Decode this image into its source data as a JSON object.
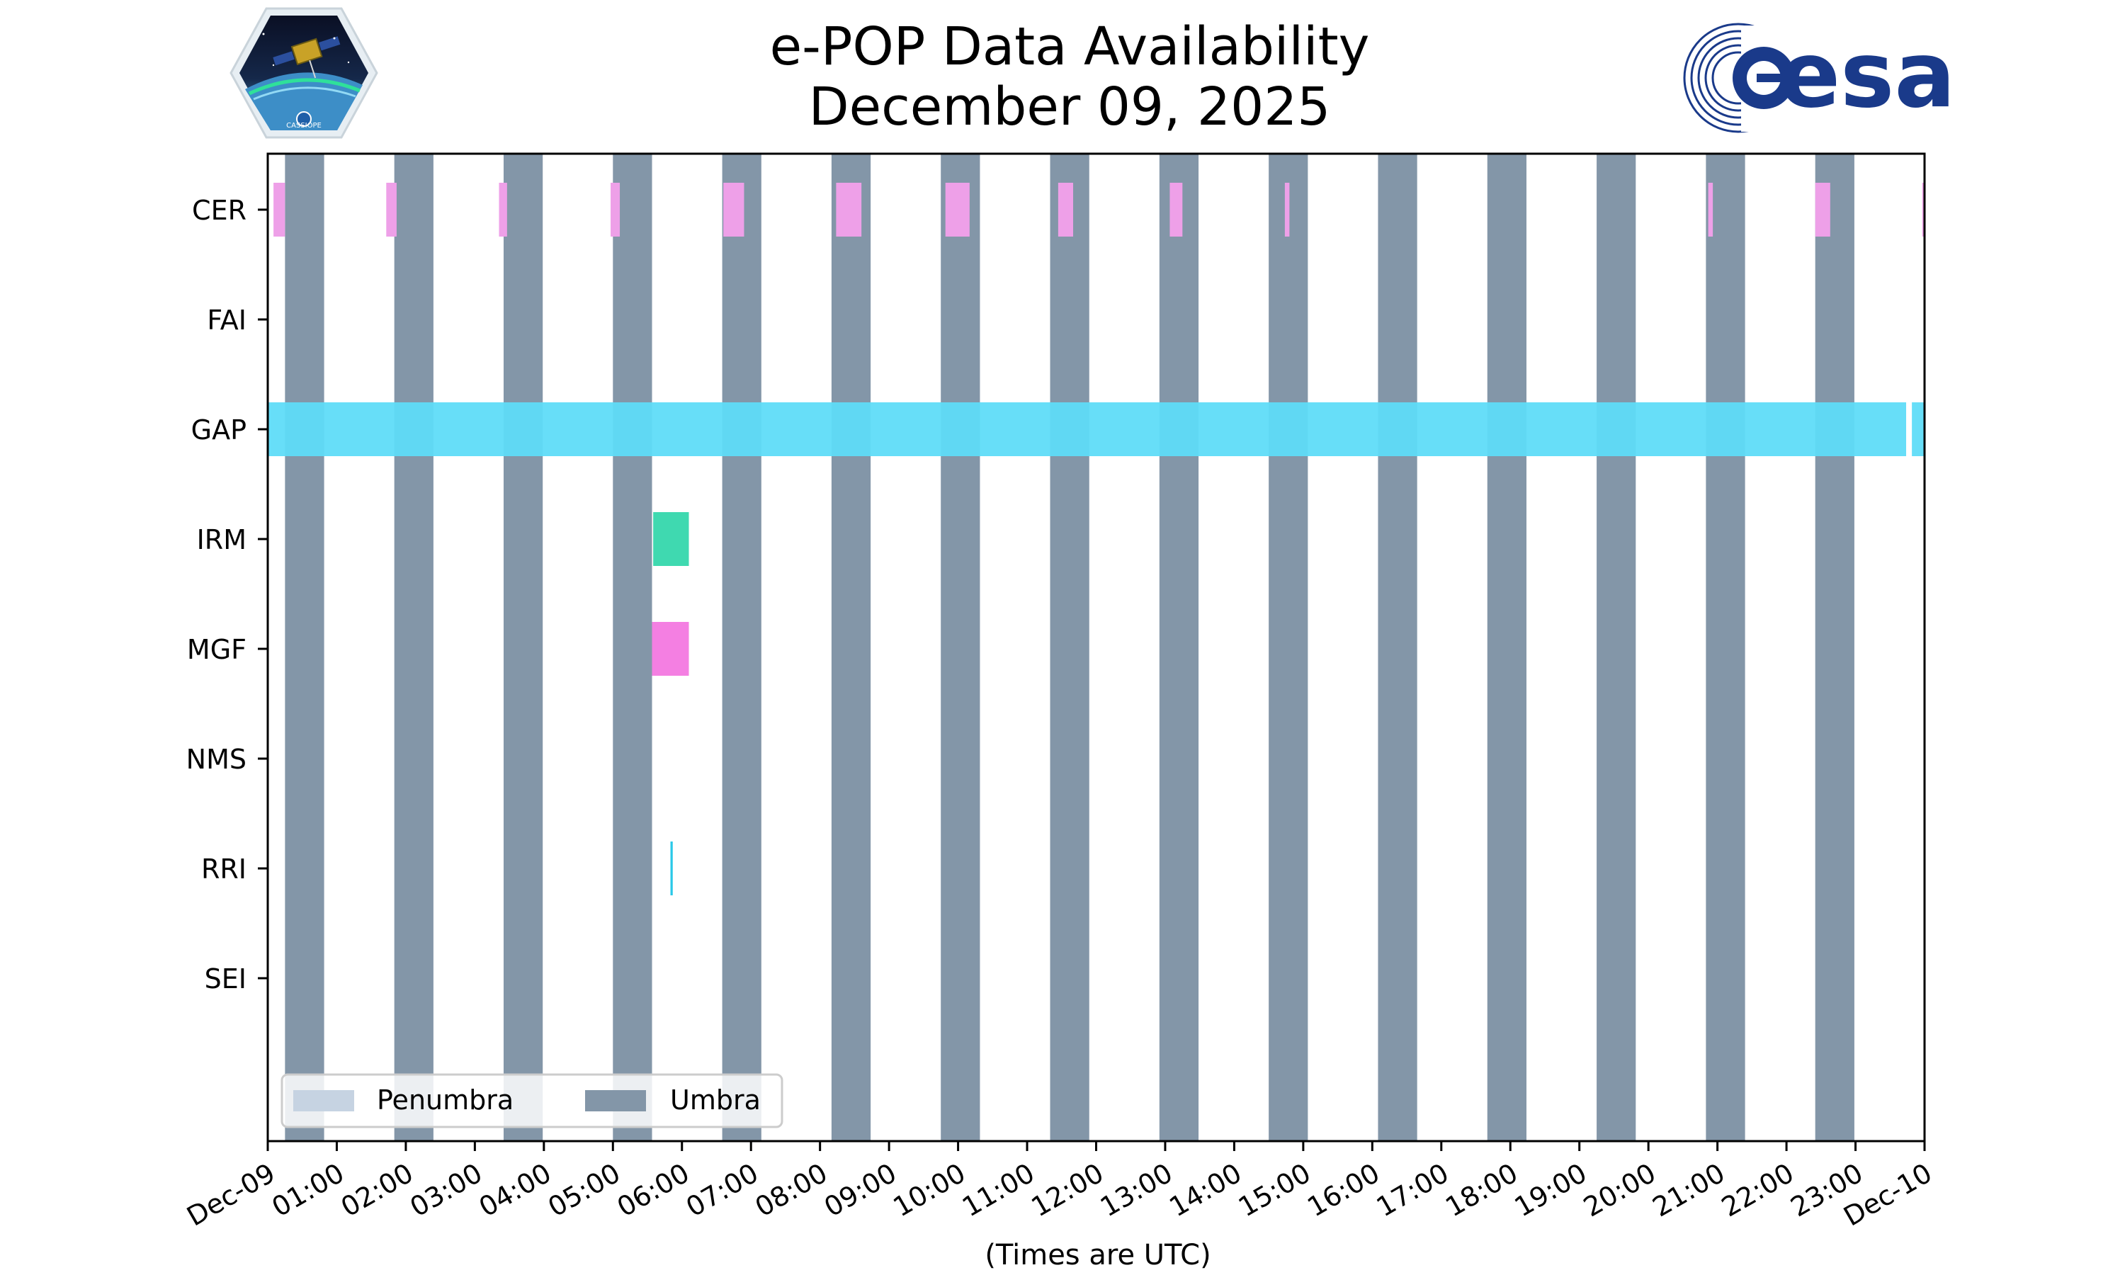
{
  "header": {
    "title_line1": "e-POP Data Availability",
    "title_line2": "December 09, 2025",
    "left_logo": {
      "name": "cassiope-mission-logo",
      "text": "CASSIOPE"
    },
    "right_logo": {
      "name": "esa-logo",
      "text": "esa"
    }
  },
  "chart_data": {
    "type": "timeline",
    "xlabel": "(Times are UTC)",
    "xlim": [
      "2025-12-09T00:00",
      "2025-12-10T00:00"
    ],
    "x_tick_labels": [
      "Dec-09",
      "01:00",
      "02:00",
      "03:00",
      "04:00",
      "05:00",
      "06:00",
      "07:00",
      "08:00",
      "09:00",
      "10:00",
      "11:00",
      "12:00",
      "13:00",
      "14:00",
      "15:00",
      "16:00",
      "17:00",
      "18:00",
      "19:00",
      "20:00",
      "21:00",
      "22:00",
      "23:00",
      "Dec-10"
    ],
    "instruments": [
      "CER",
      "FAI",
      "GAP",
      "IRM",
      "MGF",
      "NMS",
      "RRI",
      "SEI"
    ],
    "legend": {
      "placement": "lower-left",
      "entries": [
        "Penumbra",
        "Umbra"
      ]
    },
    "colors": {
      "umbra": "#8396a8",
      "penumbra": "#c6d3e2",
      "CER": "#eea0e8",
      "GAP": "#5edcf8",
      "IRM": "#3fd9b0",
      "MGF": "#f47fe2",
      "RRI": "#2ac8e8"
    },
    "umbra": [
      [
        "00:15",
        "00:49"
      ],
      [
        "01:50",
        "02:24"
      ],
      [
        "03:25",
        "03:59"
      ],
      [
        "05:00",
        "05:34"
      ],
      [
        "06:35",
        "07:09"
      ],
      [
        "08:10",
        "08:44"
      ],
      [
        "09:45",
        "10:19"
      ],
      [
        "11:20",
        "11:54"
      ],
      [
        "12:55",
        "13:29"
      ],
      [
        "14:30",
        "15:04"
      ],
      [
        "16:05",
        "16:39"
      ],
      [
        "17:40",
        "18:14"
      ],
      [
        "19:15",
        "19:49"
      ],
      [
        "20:50",
        "21:24"
      ],
      [
        "22:25",
        "22:59"
      ]
    ],
    "availability": {
      "CER": [
        [
          "00:05",
          "00:15"
        ],
        [
          "01:43",
          "01:52"
        ],
        [
          "03:21",
          "03:28"
        ],
        [
          "04:58",
          "05:06"
        ],
        [
          "06:36",
          "06:54"
        ],
        [
          "08:14",
          "08:36"
        ],
        [
          "09:49",
          "10:10"
        ],
        [
          "11:27",
          "11:40"
        ],
        [
          "13:04",
          "13:15"
        ],
        [
          "14:44",
          "14:48"
        ],
        [
          "20:52",
          "20:56"
        ],
        [
          "22:25",
          "22:38"
        ],
        [
          "23:58",
          "24:00"
        ]
      ],
      "FAI": [],
      "GAP": [
        [
          "00:00",
          "23:44"
        ],
        [
          "23:49",
          "24:00"
        ]
      ],
      "IRM": [
        [
          "05:35",
          "06:06"
        ]
      ],
      "MGF": [
        [
          "05:34",
          "06:06"
        ]
      ],
      "NMS": [],
      "RRI": [
        [
          "05:50",
          "05:52"
        ]
      ],
      "SEI": []
    }
  }
}
